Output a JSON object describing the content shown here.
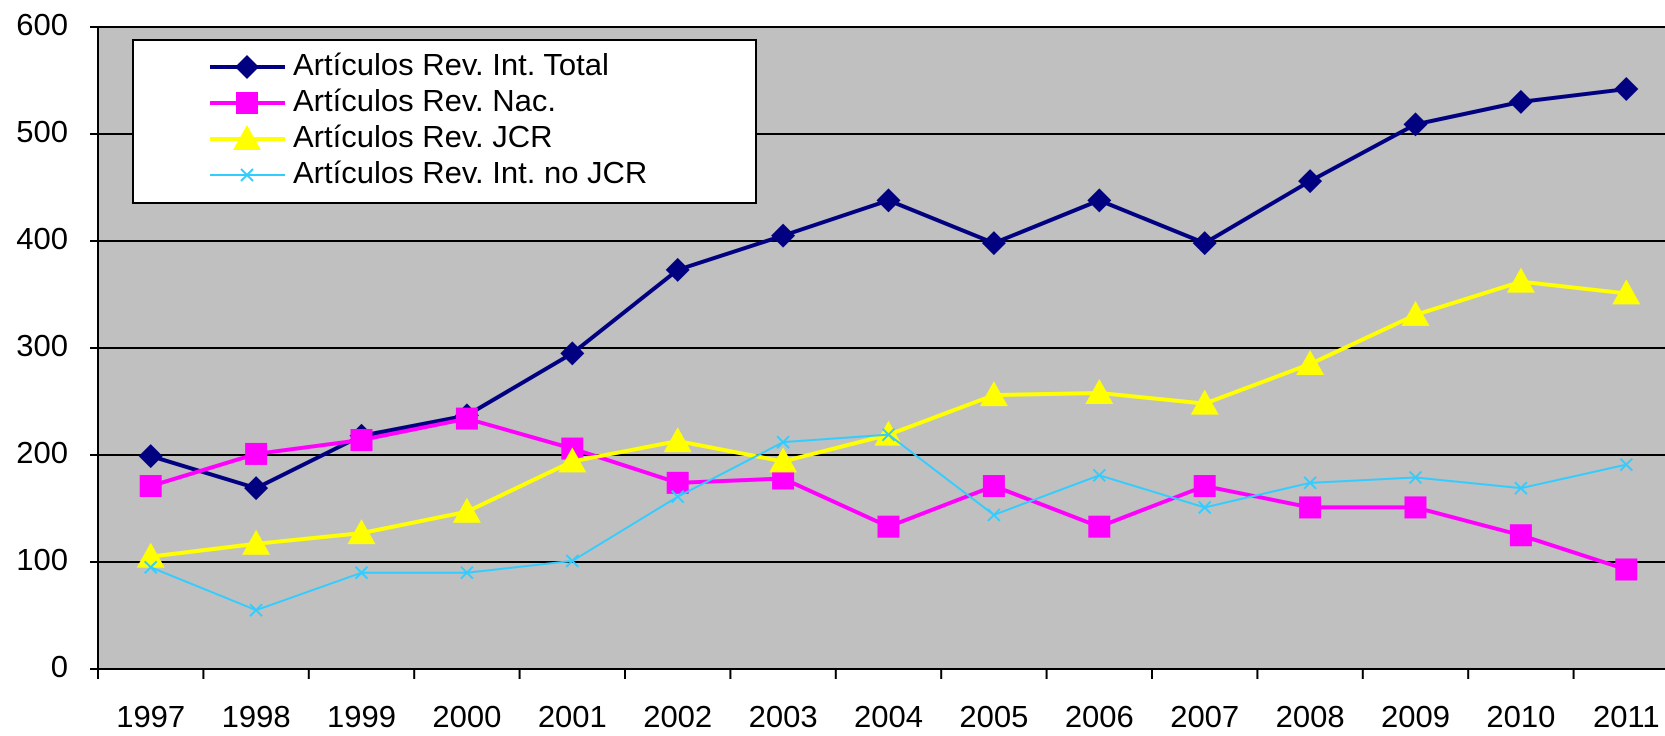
{
  "chart_data": {
    "type": "line",
    "categories": [
      "1997",
      "1998",
      "1999",
      "2000",
      "2001",
      "2002",
      "2003",
      "2004",
      "2005",
      "2006",
      "2007",
      "2008",
      "2009",
      "2010",
      "2011"
    ],
    "series": [
      {
        "name": "Artículos Rev. Int. Total",
        "color": "#000080",
        "marker": "diamond",
        "values": [
          199,
          169,
          218,
          237,
          295,
          373,
          405,
          438,
          398,
          438,
          398,
          456,
          509,
          530,
          542
        ]
      },
      {
        "name": "Artículos Rev. Nac.",
        "color": "#ff00ff",
        "marker": "square",
        "values": [
          171,
          201,
          214,
          234,
          206,
          174,
          178,
          133,
          171,
          133,
          171,
          151,
          151,
          125,
          93
        ]
      },
      {
        "name": "Artículos Rev. JCR",
        "color": "#ffff00",
        "marker": "triangle",
        "values": [
          105,
          117,
          127,
          147,
          194,
          213,
          194,
          219,
          256,
          258,
          248,
          285,
          331,
          362,
          351
        ]
      },
      {
        "name": "Artículos Rev. Int. no JCR",
        "color": "#33ccff",
        "marker": "x",
        "values": [
          95,
          55,
          90,
          90,
          101,
          161,
          212,
          219,
          144,
          181,
          151,
          174,
          179,
          169,
          191
        ]
      }
    ],
    "ylim": [
      0,
      600
    ],
    "yticks": [
      0,
      100,
      200,
      300,
      400,
      500,
      600
    ],
    "grid": true,
    "legend": "top-left"
  }
}
